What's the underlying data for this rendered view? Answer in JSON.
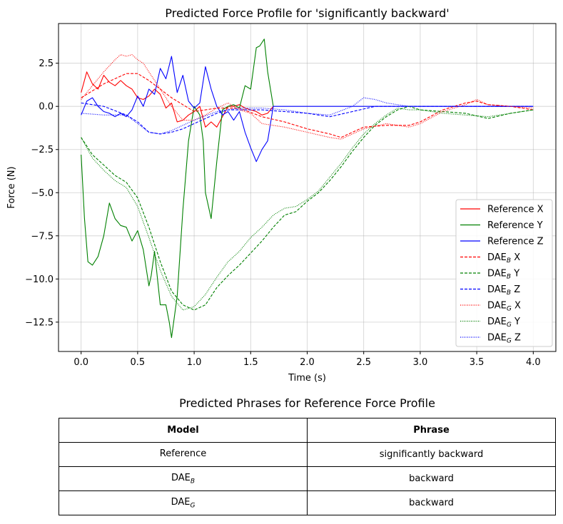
{
  "chart_data": {
    "type": "line",
    "title": "Predicted Force Profile for 'significantly backward'",
    "xlabel": "Time (s)",
    "ylabel": "Force (N)",
    "xlim": [
      -0.2,
      4.2
    ],
    "ylim": [
      -14.2,
      4.8
    ],
    "xticks": [
      0.0,
      0.5,
      1.0,
      1.5,
      2.0,
      2.5,
      3.0,
      3.5,
      4.0
    ],
    "xtick_labels": [
      "0.0",
      "0.5",
      "1.0",
      "1.5",
      "2.0",
      "2.5",
      "3.0",
      "3.5",
      "4.0"
    ],
    "yticks": [
      2.5,
      0.0,
      -2.5,
      -5.0,
      -7.5,
      -10.0,
      -12.5
    ],
    "ytick_labels": [
      "2.5",
      "0.0",
      "−2.5",
      "−5.0",
      "−7.5",
      "−10.0",
      "−12.5"
    ],
    "grid": true,
    "legend_position": "lower-right",
    "series": [
      {
        "name": "Reference X",
        "legend_base": "Reference X",
        "color": "#ff0000",
        "style": "solid",
        "x": [
          0,
          0.05,
          0.1,
          0.15,
          0.2,
          0.25,
          0.3,
          0.35,
          0.4,
          0.45,
          0.5,
          0.55,
          0.6,
          0.65,
          0.7,
          0.75,
          0.8,
          0.85,
          0.9,
          0.95,
          1.0,
          1.05,
          1.1,
          1.15,
          1.2,
          1.25,
          1.3,
          1.35,
          1.4,
          1.45,
          1.5,
          1.55,
          1.6,
          1.65,
          1.7
        ],
        "y": [
          0.8,
          2.0,
          1.3,
          1.0,
          1.8,
          1.4,
          1.2,
          1.5,
          1.2,
          1.0,
          0.5,
          0.4,
          0.6,
          1.0,
          0.7,
          -0.1,
          0.2,
          -0.9,
          -0.8,
          -0.5,
          -0.3,
          0.0,
          -1.2,
          -0.9,
          -1.2,
          -0.6,
          0.0,
          0.0,
          0.1,
          -0.1,
          -0.2,
          -0.3,
          -0.5,
          -0.4,
          0.0
        ]
      },
      {
        "name": "Reference Y",
        "legend_base": "Reference Y",
        "color": "#008000",
        "style": "solid",
        "x": [
          0,
          0.03,
          0.06,
          0.1,
          0.15,
          0.2,
          0.25,
          0.3,
          0.35,
          0.4,
          0.45,
          0.5,
          0.55,
          0.6,
          0.62,
          0.65,
          0.7,
          0.75,
          0.78,
          0.8,
          0.85,
          0.9,
          0.95,
          1.0,
          1.05,
          1.08,
          1.1,
          1.15,
          1.2,
          1.25,
          1.3,
          1.35,
          1.4,
          1.45,
          1.5,
          1.55,
          1.58,
          1.62,
          1.65,
          1.7
        ],
        "y": [
          -2.8,
          -6.5,
          -9.0,
          -9.2,
          -8.7,
          -7.5,
          -5.6,
          -6.5,
          -6.9,
          -7.0,
          -7.8,
          -7.2,
          -8.3,
          -10.4,
          -9.8,
          -8.4,
          -11.5,
          -11.5,
          -12.5,
          -13.4,
          -11.0,
          -6.0,
          -2.0,
          0.0,
          -0.5,
          -2.0,
          -5.0,
          -6.5,
          -3.2,
          -0.2,
          0.0,
          0.1,
          -0.1,
          1.2,
          1.0,
          3.4,
          3.5,
          3.9,
          2.0,
          0.0
        ]
      },
      {
        "name": "Reference Z",
        "legend_base": "Reference Z",
        "color": "#0000ff",
        "style": "solid",
        "x": [
          0,
          0.05,
          0.1,
          0.15,
          0.2,
          0.25,
          0.3,
          0.35,
          0.4,
          0.45,
          0.5,
          0.55,
          0.6,
          0.65,
          0.7,
          0.75,
          0.8,
          0.85,
          0.9,
          0.95,
          1.0,
          1.05,
          1.1,
          1.15,
          1.2,
          1.25,
          1.3,
          1.35,
          1.4,
          1.45,
          1.5,
          1.55,
          1.6,
          1.65,
          1.7,
          1.8,
          4.0
        ],
        "y": [
          -0.5,
          0.3,
          0.5,
          0.0,
          -0.3,
          -0.4,
          -0.6,
          -0.4,
          -0.6,
          -0.2,
          0.6,
          0.0,
          1.0,
          0.7,
          2.2,
          1.6,
          2.9,
          0.8,
          1.8,
          0.3,
          -0.1,
          0.2,
          2.3,
          1.0,
          0.0,
          -0.5,
          -0.3,
          -0.8,
          -0.3,
          -1.5,
          -2.4,
          -3.2,
          -2.5,
          -2.0,
          0.0,
          0.0,
          0.0
        ]
      },
      {
        "name": "DAE_B X",
        "legend_base": "DAE",
        "legend_sub": "B",
        "legend_axis": "X",
        "color": "#ff0000",
        "style": "dashed",
        "x": [
          0,
          0.2,
          0.4,
          0.5,
          0.6,
          0.8,
          1.0,
          1.2,
          1.4,
          1.6,
          1.8,
          2.0,
          2.2,
          2.3,
          2.5,
          2.7,
          2.9,
          3.0,
          3.2,
          3.4,
          3.5,
          3.6,
          3.8,
          4.0
        ],
        "y": [
          0.5,
          1.3,
          1.9,
          1.9,
          1.5,
          0.5,
          -0.3,
          -0.1,
          -0.1,
          -0.6,
          -0.9,
          -1.3,
          -1.6,
          -1.8,
          -1.2,
          -1.1,
          -1.1,
          -0.9,
          -0.2,
          0.2,
          0.3,
          0.1,
          0.0,
          -0.2
        ]
      },
      {
        "name": "DAE_B Y",
        "legend_base": "DAE",
        "legend_sub": "B",
        "legend_axis": "Y",
        "color": "#008000",
        "style": "dashed",
        "x": [
          0,
          0.1,
          0.2,
          0.3,
          0.4,
          0.5,
          0.6,
          0.7,
          0.8,
          0.9,
          1.0,
          1.1,
          1.2,
          1.3,
          1.4,
          1.5,
          1.6,
          1.7,
          1.8,
          1.9,
          2.0,
          2.1,
          2.2,
          2.3,
          2.4,
          2.5,
          2.6,
          2.7,
          2.8,
          2.9,
          3.0,
          3.2,
          3.4,
          3.6,
          3.8,
          4.0
        ],
        "y": [
          -1.8,
          -2.8,
          -3.4,
          -4.0,
          -4.4,
          -5.3,
          -7.0,
          -9.0,
          -10.7,
          -11.5,
          -11.8,
          -11.5,
          -10.5,
          -9.8,
          -9.2,
          -8.5,
          -7.8,
          -7.0,
          -6.3,
          -6.1,
          -5.5,
          -5.0,
          -4.3,
          -3.5,
          -2.6,
          -1.8,
          -1.1,
          -0.6,
          -0.2,
          0.0,
          -0.2,
          -0.3,
          -0.4,
          -0.7,
          -0.4,
          -0.2
        ]
      },
      {
        "name": "DAE_B Z",
        "legend_base": "DAE",
        "legend_sub": "B",
        "legend_axis": "Z",
        "color": "#0000ff",
        "style": "dashed",
        "x": [
          0,
          0.2,
          0.4,
          0.5,
          0.6,
          0.7,
          0.8,
          0.9,
          1.0,
          1.1,
          1.2,
          1.3,
          1.4,
          1.5,
          1.6,
          1.8,
          2.0,
          2.2,
          2.4,
          2.6,
          2.8,
          3.0,
          3.2,
          3.4,
          3.6,
          3.8,
          4.0
        ],
        "y": [
          0.2,
          0.0,
          -0.5,
          -0.9,
          -1.5,
          -1.6,
          -1.5,
          -1.3,
          -1.0,
          -0.7,
          -0.4,
          -0.2,
          -0.2,
          -0.2,
          -0.2,
          -0.3,
          -0.4,
          -0.6,
          -0.3,
          0.0,
          0.0,
          0.0,
          0.0,
          0.0,
          0.0,
          0.0,
          0.0
        ]
      },
      {
        "name": "DAE_G X",
        "legend_base": "DAE",
        "legend_sub": "G",
        "legend_axis": "X",
        "color": "#ff0000",
        "style": "dotted",
        "x": [
          0,
          0.1,
          0.2,
          0.3,
          0.35,
          0.4,
          0.45,
          0.5,
          0.55,
          0.6,
          0.7,
          0.8,
          0.9,
          1.0,
          1.1,
          1.2,
          1.3,
          1.4,
          1.5,
          1.6,
          1.8,
          2.0,
          2.2,
          2.3,
          2.5,
          2.7,
          2.9,
          3.0,
          3.2,
          3.4,
          3.5,
          3.6,
          3.8,
          4.0
        ],
        "y": [
          0.4,
          1.2,
          2.0,
          2.7,
          3.0,
          2.9,
          3.0,
          2.7,
          2.5,
          2.0,
          1.0,
          0.0,
          -0.8,
          -0.8,
          -0.5,
          -0.1,
          0.2,
          -0.2,
          -0.4,
          -1.0,
          -1.2,
          -1.5,
          -1.8,
          -1.9,
          -1.3,
          -1.0,
          -1.2,
          -1.0,
          -0.3,
          0.1,
          0.4,
          0.1,
          0.0,
          -0.1
        ]
      },
      {
        "name": "DAE_G Y",
        "legend_base": "DAE",
        "legend_sub": "G",
        "legend_axis": "Y",
        "color": "#008000",
        "style": "dotted",
        "x": [
          0,
          0.1,
          0.2,
          0.3,
          0.4,
          0.5,
          0.6,
          0.7,
          0.8,
          0.9,
          1.0,
          1.1,
          1.2,
          1.3,
          1.4,
          1.5,
          1.6,
          1.7,
          1.8,
          1.9,
          2.0,
          2.1,
          2.2,
          2.3,
          2.4,
          2.5,
          2.6,
          2.7,
          2.8,
          2.9,
          3.0,
          3.2,
          3.4,
          3.6,
          3.8,
          4.0
        ],
        "y": [
          -1.8,
          -3.0,
          -3.7,
          -4.3,
          -4.7,
          -5.8,
          -7.6,
          -9.5,
          -11.0,
          -11.8,
          -11.6,
          -10.9,
          -9.9,
          -9.0,
          -8.4,
          -7.6,
          -7.0,
          -6.3,
          -5.9,
          -5.8,
          -5.4,
          -4.9,
          -4.1,
          -3.3,
          -2.4,
          -1.6,
          -1.0,
          -0.5,
          -0.1,
          -0.2,
          -0.2,
          -0.4,
          -0.5,
          -0.6,
          -0.4,
          -0.2
        ]
      },
      {
        "name": "DAE_G Z",
        "legend_base": "DAE",
        "legend_sub": "G",
        "legend_axis": "Z",
        "color": "#0000ff",
        "style": "dotted",
        "x": [
          0,
          0.2,
          0.4,
          0.5,
          0.6,
          0.7,
          0.8,
          0.9,
          1.0,
          1.2,
          1.4,
          1.6,
          1.8,
          2.0,
          2.2,
          2.4,
          2.5,
          2.6,
          2.7,
          2.8,
          2.9,
          3.0,
          3.2,
          3.4,
          3.6,
          3.8,
          4.0
        ],
        "y": [
          -0.4,
          -0.5,
          -0.5,
          -1.0,
          -1.5,
          -1.6,
          -1.4,
          -1.1,
          -0.8,
          -0.3,
          -0.1,
          -0.1,
          -0.2,
          -0.4,
          -0.5,
          0.0,
          0.5,
          0.4,
          0.2,
          0.1,
          0.0,
          0.0,
          0.0,
          0.0,
          0.0,
          0.0,
          0.0
        ]
      }
    ]
  },
  "table": {
    "title": "Predicted Phrases for Reference Force Profile",
    "headers": {
      "model": "Model",
      "phrase": "Phrase"
    },
    "rows": [
      {
        "model": "Reference",
        "model_sub": "",
        "phrase": "significantly backward"
      },
      {
        "model": "DAE",
        "model_sub": "B",
        "phrase": "backward"
      },
      {
        "model": "DAE",
        "model_sub": "G",
        "phrase": "backward"
      }
    ]
  }
}
